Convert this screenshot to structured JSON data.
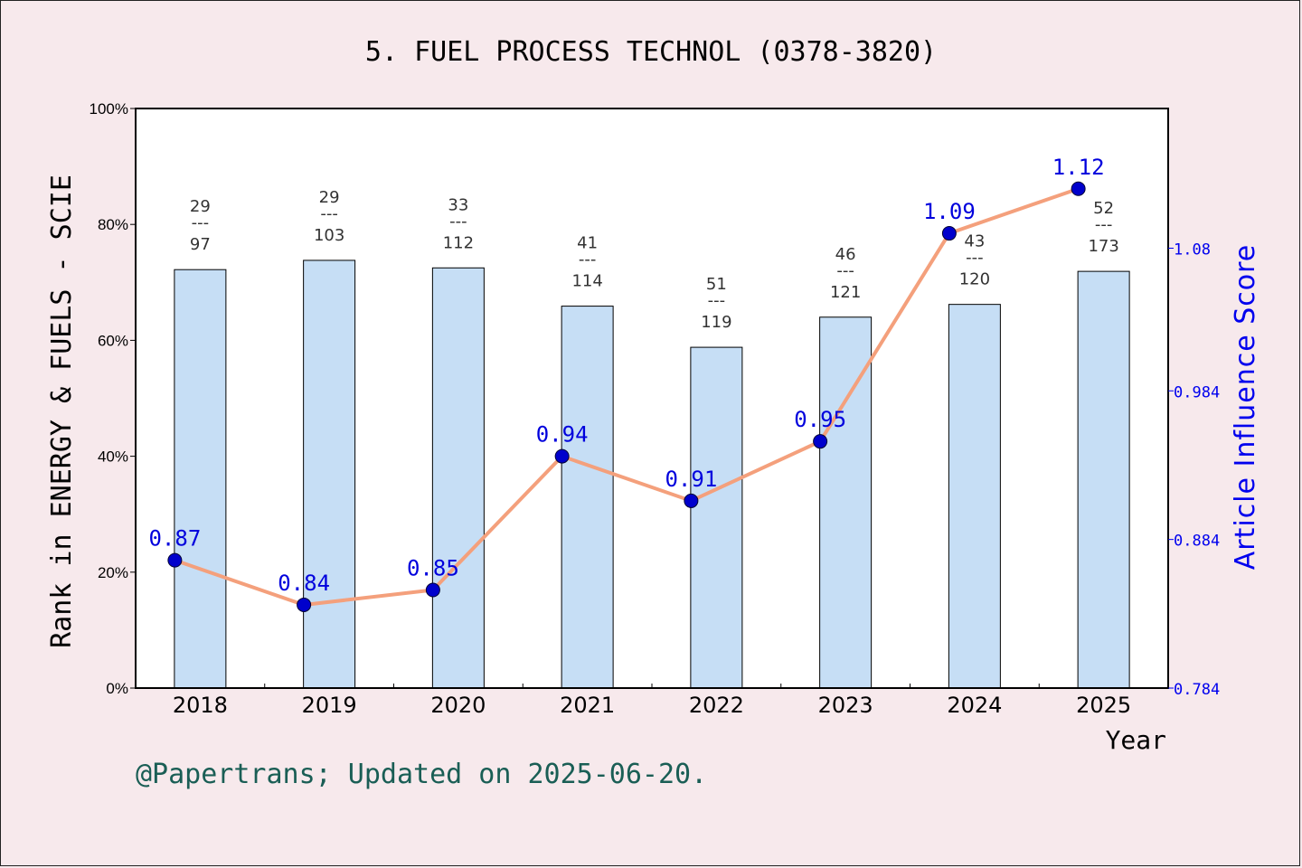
{
  "chart_data": {
    "type": "bar",
    "title": "5. FUEL PROCESS TECHNOL (0378-3820)",
    "xlabel": "Year",
    "ylabel_left": "Rank in ENERGY & FUELS - SCIE",
    "ylabel_right": "Article Influence Score",
    "categories": [
      "2018",
      "2019",
      "2020",
      "2021",
      "2022",
      "2023",
      "2024",
      "2025"
    ],
    "left_axis": {
      "ylim": [
        0,
        100
      ],
      "ticks": [
        "0%",
        "20%",
        "40%",
        "60%",
        "80%",
        "100%"
      ]
    },
    "right_axis": {
      "ylim": [
        0.784,
        1.174
      ],
      "ticks": [
        "0.784",
        "0.884",
        "0.984",
        "1.08"
      ],
      "tick_values": [
        0.784,
        0.884,
        0.984,
        1.08
      ]
    },
    "bar_series": {
      "name": "",
      "values": [
        72.2,
        73.8,
        72.5,
        65.9,
        58.8,
        64.0,
        66.2,
        71.9
      ],
      "rank": [
        "29",
        "29",
        "33",
        "41",
        "51",
        "46",
        "43",
        "52"
      ],
      "total": [
        "97",
        "103",
        "112",
        "114",
        "119",
        "121",
        "120",
        "173"
      ],
      "color": "#c6def5"
    },
    "line_series": {
      "name": "",
      "values": [
        0.87,
        0.84,
        0.85,
        0.94,
        0.91,
        0.95,
        1.09,
        1.12
      ],
      "labels": [
        "0.87",
        "0.84",
        "0.85",
        "0.94",
        "0.91",
        "0.95",
        "1.09",
        "1.12"
      ],
      "line_color": "#f4a07c",
      "marker_color": "#0000cc"
    },
    "grid": false
  },
  "footer": "@Papertrans; Updated on 2025-06-20."
}
